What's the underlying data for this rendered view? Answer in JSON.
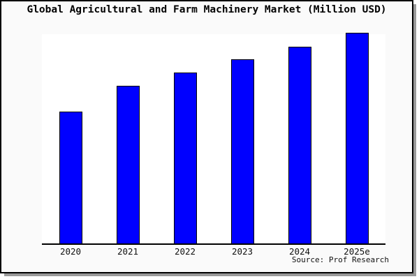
{
  "title": "Global Agricultural and Farm Machinery Market (Million USD)",
  "source": "Source: Prof Research",
  "window": {
    "background": "#fafafa",
    "frame_color": "#000000",
    "shadow_color": "#999999"
  },
  "chart_data": {
    "type": "bar",
    "title": "Global Agricultural and Farm Machinery Market (Million USD)",
    "categories": [
      "2020",
      "2021",
      "2022",
      "2023",
      "2024",
      "2025e"
    ],
    "values": [
      62.5,
      75,
      81,
      87.5,
      93.5,
      100
    ],
    "value_note": "no y-axis scale shown; values are relative bar heights as % of the 2025e bar",
    "xlabel": "",
    "ylabel": "",
    "ylim": [
      0,
      100
    ],
    "grid": false,
    "legend": null,
    "bar_color": "#0000ff",
    "bar_border_color": "#000000",
    "plot_background": "#ffffff",
    "axis_color": "#000000",
    "annotation": "Source: Prof Research"
  }
}
